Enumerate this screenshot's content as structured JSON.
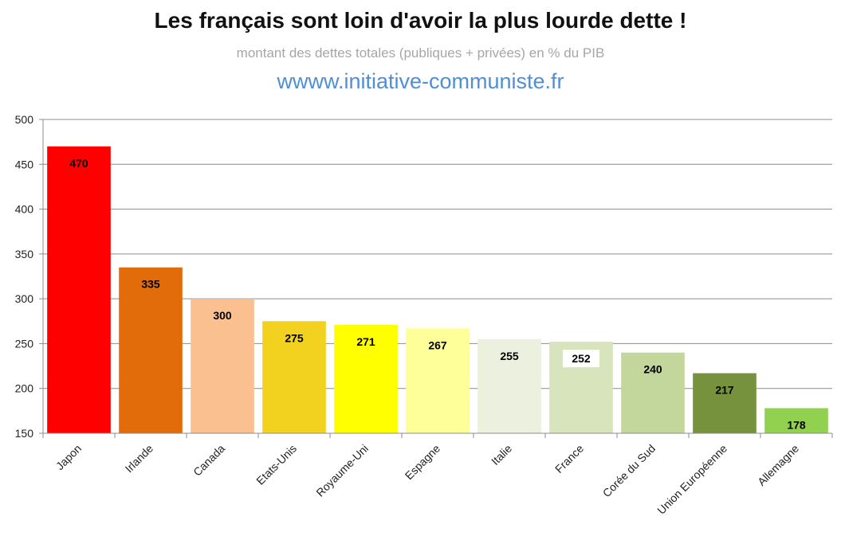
{
  "header": {
    "title": "Les français sont loin d'avoir la plus lourde dette !",
    "subtitle": "montant des dettes totales (publiques + privées) en % du PIB",
    "url": "wwww.initiative-communiste.fr"
  },
  "chart_data": {
    "type": "bar",
    "title": "Les français sont loin d'avoir la plus lourde dette !",
    "subtitle": "montant des dettes totales (publiques + privées) en % du PIB",
    "xlabel": "",
    "ylabel": "",
    "ylim": [
      150,
      500
    ],
    "yticks": [
      150,
      200,
      250,
      300,
      350,
      400,
      450,
      500
    ],
    "grid": true,
    "legend": "none",
    "categories": [
      "Japon",
      "Irlande",
      "Canada",
      "Etats-Unis",
      "Royaume-Uni",
      "Espagne",
      "Italie",
      "France",
      "Corée du Sud",
      "Union Européenne",
      "Allemagne"
    ],
    "values": [
      470,
      335,
      300,
      275,
      271,
      267,
      255,
      252,
      240,
      217,
      178
    ],
    "colors": [
      "#ff0000",
      "#e36c0a",
      "#fac090",
      "#f2d21f",
      "#ffff00",
      "#ffff99",
      "#ebf1de",
      "#d7e4bc",
      "#c3d69b",
      "#76923c",
      "#92d050"
    ],
    "highlight_category": "France"
  }
}
